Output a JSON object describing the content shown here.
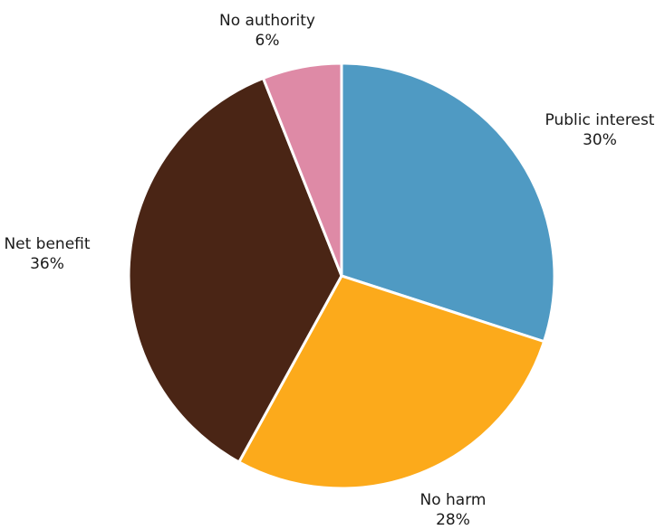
{
  "chart_data": {
    "type": "pie",
    "title": "",
    "slices": [
      {
        "label": "Public interest",
        "value": 30,
        "value_label": "30%",
        "color": "#4f9ac3"
      },
      {
        "label": "No harm",
        "value": 28,
        "value_label": "28%",
        "color": "#fcaa1b"
      },
      {
        "label": "Net benefit",
        "value": 36,
        "value_label": "36%",
        "color": "#4a2515"
      },
      {
        "label": "No authority",
        "value": 6,
        "value_label": "6%",
        "color": "#de8aa6"
      }
    ],
    "start_angle": "12 o'clock",
    "direction": "clockwise",
    "legend": "none (labels outside slices)"
  }
}
